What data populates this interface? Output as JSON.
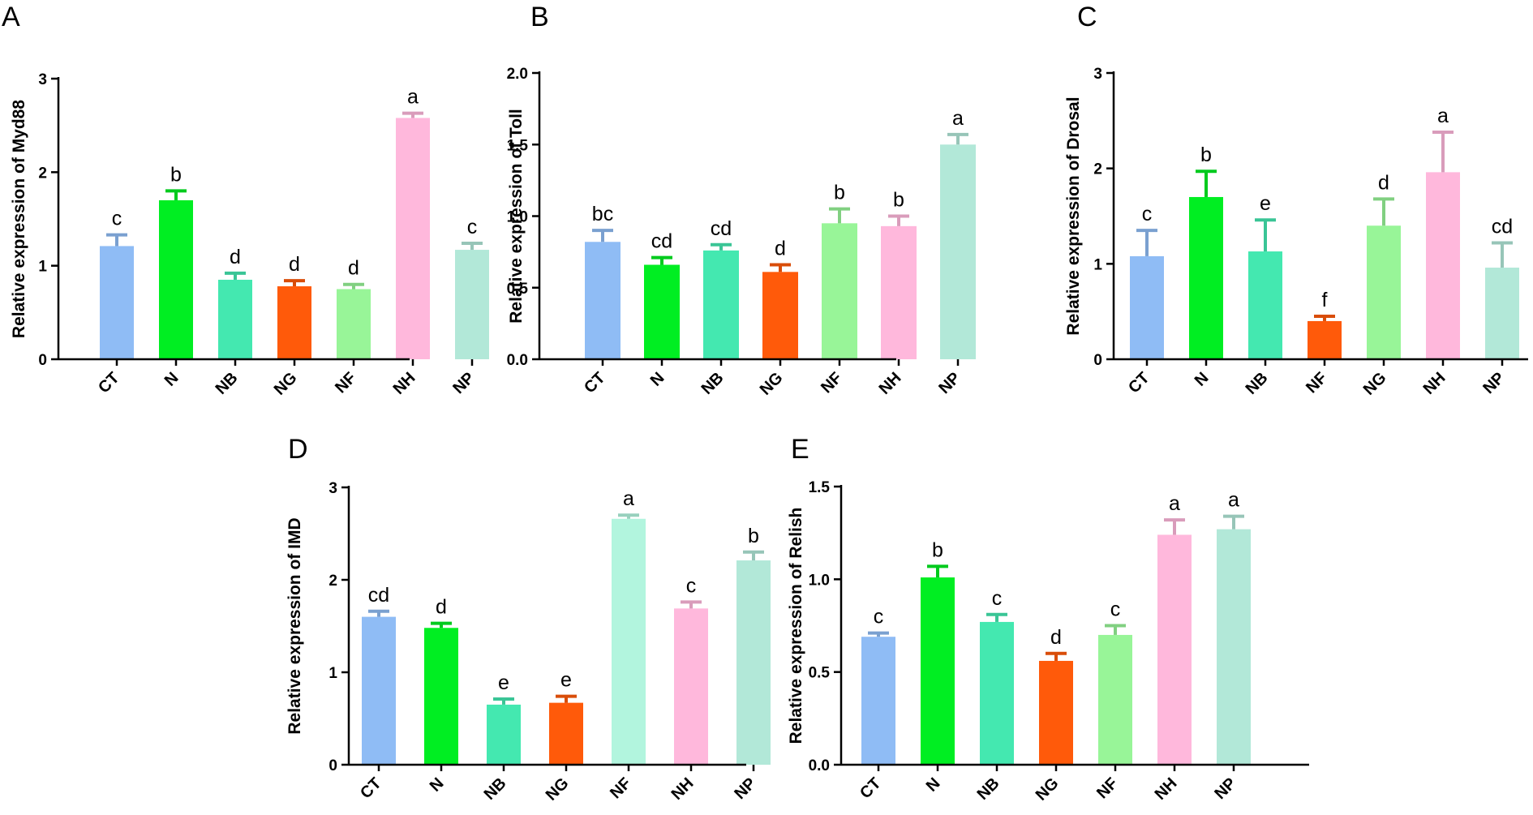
{
  "chart_data": [
    {
      "panel": "A",
      "type": "bar",
      "ylabel": "Relative expression of Myd88",
      "ylim": [
        0,
        3
      ],
      "yticks": [
        0,
        1,
        2,
        3
      ],
      "ytick_labels": [
        "0",
        "1",
        "2",
        "3"
      ],
      "categories": [
        "CT",
        "N",
        "NB",
        "NG",
        "NF",
        "NH",
        "NP"
      ],
      "values": [
        1.21,
        1.7,
        0.85,
        0.78,
        0.75,
        2.58,
        1.17
      ],
      "errors": [
        0.12,
        0.1,
        0.07,
        0.06,
        0.05,
        0.05,
        0.07
      ],
      "letters": [
        "c",
        "b",
        "d",
        "d",
        "d",
        "a",
        "c"
      ],
      "colors": [
        "#8fbcf5",
        "#00ee22",
        "#44e8b0",
        "#ff5a0a",
        "#98f598",
        "#ffb8dc",
        "#b2e8d8"
      ]
    },
    {
      "panel": "B",
      "type": "bar",
      "ylabel": "Relative expression of Toll",
      "ylim": [
        0,
        2
      ],
      "yticks": [
        0,
        0.5,
        1,
        1.5,
        2
      ],
      "ytick_labels": [
        "0.0",
        "0.5",
        "1.0",
        "1.5",
        "2.0"
      ],
      "categories": [
        "CT",
        "N",
        "NB",
        "NG",
        "NF",
        "NH",
        "NP"
      ],
      "values": [
        0.82,
        0.66,
        0.76,
        0.61,
        0.95,
        0.93,
        1.5
      ],
      "errors": [
        0.08,
        0.05,
        0.04,
        0.05,
        0.1,
        0.07,
        0.07
      ],
      "letters": [
        "bc",
        "cd",
        "cd",
        "d",
        "b",
        "b",
        "a"
      ],
      "colors": [
        "#8fbcf5",
        "#00ee22",
        "#44e8b0",
        "#ff5a0a",
        "#98f598",
        "#ffb8dc",
        "#b2e8d8"
      ]
    },
    {
      "panel": "C",
      "type": "bar",
      "ylabel": "Relative expression of Drosal",
      "ylim": [
        0,
        3
      ],
      "yticks": [
        0,
        1,
        2,
        3
      ],
      "ytick_labels": [
        "0",
        "1",
        "2",
        "3"
      ],
      "categories": [
        "CT",
        "N",
        "NB",
        "NF",
        "NG",
        "NH",
        "NP"
      ],
      "values": [
        1.08,
        1.7,
        1.13,
        0.4,
        1.4,
        1.96,
        0.96
      ],
      "errors": [
        0.27,
        0.27,
        0.33,
        0.05,
        0.28,
        0.42,
        0.26
      ],
      "letters": [
        "c",
        "b",
        "e",
        "f",
        "d",
        "a",
        "cd"
      ],
      "colors": [
        "#8fbcf5",
        "#00ee22",
        "#44e8b0",
        "#ff5a0a",
        "#98f598",
        "#ffb8dc",
        "#b2e8d8"
      ]
    },
    {
      "panel": "D",
      "type": "bar",
      "ylabel": "Relative expression of IMD",
      "ylim": [
        0,
        3
      ],
      "yticks": [
        0,
        1,
        2,
        3
      ],
      "ytick_labels": [
        "0",
        "1",
        "2",
        "3"
      ],
      "categories": [
        "CT",
        "N",
        "NB",
        "NG",
        "NF",
        "NH",
        "NP"
      ],
      "values": [
        1.6,
        1.48,
        0.65,
        0.67,
        2.66,
        1.69,
        2.21
      ],
      "errors": [
        0.06,
        0.05,
        0.06,
        0.07,
        0.04,
        0.07,
        0.09
      ],
      "letters": [
        "cd",
        "d",
        "e",
        "e",
        "a",
        "c",
        "b"
      ],
      "colors": [
        "#8fbcf5",
        "#00ee22",
        "#44e8b0",
        "#ff5a0a",
        "#b2f5de",
        "#ffb8dc",
        "#b2e8d8"
      ]
    },
    {
      "panel": "E",
      "type": "bar",
      "ylabel": "Relative expression of Relish",
      "ylim": [
        0,
        1.5
      ],
      "yticks": [
        0,
        0.5,
        1,
        1.5
      ],
      "ytick_labels": [
        "0.0",
        "0.5",
        "1.0",
        "1.5"
      ],
      "categories": [
        "CT",
        "N",
        "NB",
        "NG",
        "NF",
        "NH",
        "NP"
      ],
      "values": [
        0.69,
        1.01,
        0.77,
        0.56,
        0.7,
        1.24,
        1.27
      ],
      "errors": [
        0.02,
        0.06,
        0.04,
        0.04,
        0.05,
        0.08,
        0.07
      ],
      "letters": [
        "c",
        "b",
        "c",
        "d",
        "c",
        "a",
        "a"
      ],
      "colors": [
        "#8fbcf5",
        "#00ee22",
        "#44e8b0",
        "#ff5a0a",
        "#98f598",
        "#ffb8dc",
        "#b2e8d8"
      ]
    }
  ]
}
